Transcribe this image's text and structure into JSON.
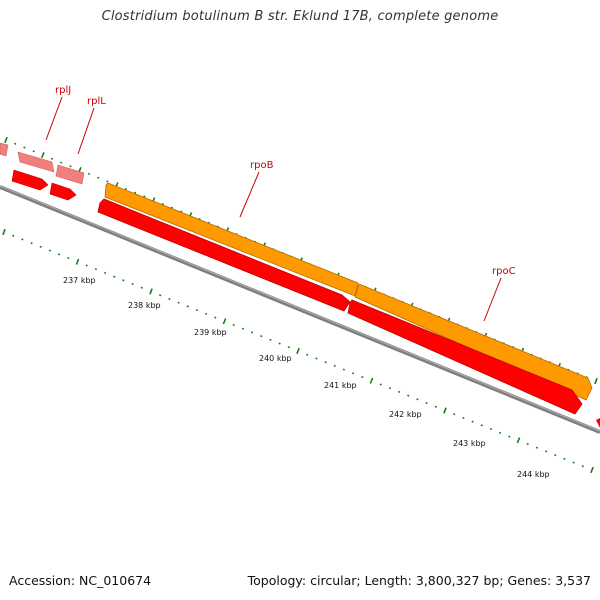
{
  "title": "Clostridium botulinum B str. Eklund 17B, complete genome",
  "footer": {
    "accession": "Accession: NC_010674",
    "summary": "Topology: circular; Length: 3,800,327 bp; Genes: 3,537"
  },
  "colors": {
    "gene_forward_fill": "#ff0000",
    "gene_forward_faded": "#f08080",
    "cds_fill": "#ff9900",
    "label_color": "#cc0000",
    "backbone": "#7f7f7f",
    "tick": "#1a7a1a"
  },
  "gene_labels": [
    "rplJ",
    "rplL",
    "rpoB",
    "rpoC"
  ],
  "scale_labels": [
    "237 kbp",
    "238 kbp",
    "239 kbp",
    "240 kbp",
    "241 kbp",
    "242 kbp",
    "243 kbp",
    "244 kbp"
  ]
}
